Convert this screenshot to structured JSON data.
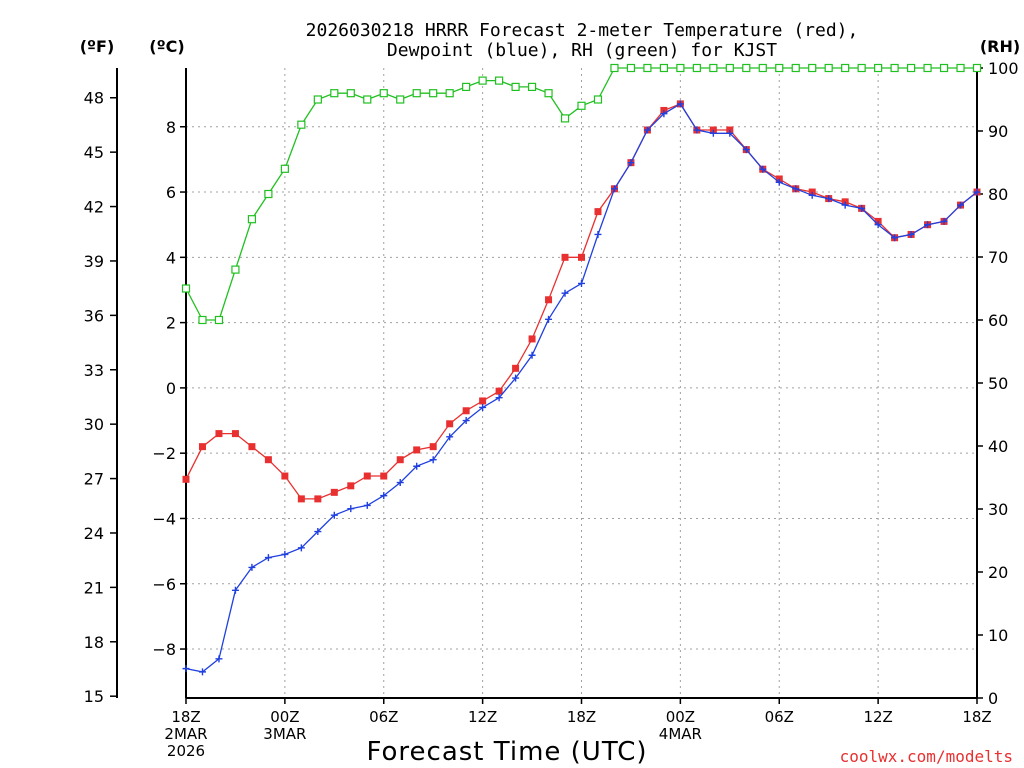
{
  "chart_data": {
    "type": "line",
    "title_line1": "2026030218 HRRR Forecast 2-meter Temperature (red),",
    "title_line2": "Dewpoint (blue), RH (green) for KJST",
    "xlabel": "Forecast Time (UTC)",
    "credit": "coolwx.com/modelts",
    "unit_labels": {
      "fahrenheit": "(ºF)",
      "celsius": "(ºC)",
      "rh": "(RH)"
    },
    "colors": {
      "temperature": "#e83030",
      "dewpoint": "#2040e0",
      "rh": "#20c020",
      "grid": "#a0a0a0"
    },
    "x_range": [
      0,
      48
    ],
    "x_ticks": [
      {
        "hour": 0,
        "lines": [
          "18Z",
          "2MAR",
          "2026"
        ]
      },
      {
        "hour": 6,
        "lines": [
          "00Z",
          "3MAR"
        ]
      },
      {
        "hour": 12,
        "lines": [
          "06Z"
        ]
      },
      {
        "hour": 18,
        "lines": [
          "12Z"
        ]
      },
      {
        "hour": 24,
        "lines": [
          "18Z"
        ]
      },
      {
        "hour": 30,
        "lines": [
          "00Z",
          "4MAR"
        ]
      },
      {
        "hour": 36,
        "lines": [
          "06Z"
        ]
      },
      {
        "hour": 42,
        "lines": [
          "12Z"
        ]
      },
      {
        "hour": 48,
        "lines": [
          "18Z"
        ]
      }
    ],
    "y_celsius": {
      "range": [
        -9.5,
        9.8
      ],
      "ticks": [
        -8,
        -6,
        -4,
        -2,
        0,
        2,
        4,
        6,
        8
      ]
    },
    "y_fahrenheit": {
      "ticks": [
        15,
        18,
        21,
        24,
        27,
        30,
        33,
        36,
        39,
        42,
        45,
        48
      ]
    },
    "y_rh": {
      "range": [
        0,
        100
      ],
      "ticks": [
        0,
        10,
        20,
        30,
        40,
        50,
        60,
        70,
        80,
        90,
        100
      ]
    },
    "hours": [
      0,
      1,
      2,
      3,
      4,
      5,
      6,
      7,
      8,
      9,
      10,
      11,
      12,
      13,
      14,
      15,
      16,
      17,
      18,
      19,
      20,
      21,
      22,
      23,
      24,
      25,
      26,
      27,
      28,
      29,
      30,
      31,
      32,
      33,
      34,
      35,
      36,
      37,
      38,
      39,
      40,
      41,
      42,
      43,
      44,
      45,
      46,
      47,
      48
    ],
    "series": [
      {
        "name": "Temperature",
        "unit": "C",
        "marker": "filled-square",
        "values": [
          -2.8,
          -1.8,
          -1.4,
          -1.4,
          -1.8,
          -2.2,
          -2.7,
          -3.4,
          -3.4,
          -3.2,
          -3.0,
          -2.7,
          -2.7,
          -2.2,
          -1.9,
          -1.8,
          -1.1,
          -0.7,
          -0.4,
          -0.1,
          0.6,
          1.5,
          2.7,
          4.0,
          4.0,
          5.4,
          6.1,
          6.9,
          7.9,
          8.5,
          8.7,
          7.9,
          7.9,
          7.9,
          7.3,
          6.7,
          6.4,
          6.1,
          6.0,
          5.8,
          5.7,
          5.5,
          5.1,
          4.6,
          4.7,
          5.0,
          5.1,
          5.6,
          6.0
        ]
      },
      {
        "name": "Dewpoint",
        "unit": "C",
        "marker": "plus",
        "values": [
          -8.6,
          -8.7,
          -8.3,
          -6.2,
          -5.5,
          -5.2,
          -5.1,
          -4.9,
          -4.4,
          -3.9,
          -3.7,
          -3.6,
          -3.3,
          -2.9,
          -2.4,
          -2.2,
          -1.5,
          -1.0,
          -0.6,
          -0.3,
          0.3,
          1.0,
          2.1,
          2.9,
          3.2,
          4.7,
          6.1,
          6.9,
          7.9,
          8.4,
          8.7,
          7.9,
          7.8,
          7.8,
          7.3,
          6.7,
          6.3,
          6.1,
          5.9,
          5.8,
          5.6,
          5.5,
          5.0,
          4.6,
          4.7,
          5.0,
          5.1,
          5.6,
          6.0
        ]
      },
      {
        "name": "RH",
        "unit": "%",
        "marker": "open-square",
        "values": [
          65,
          60,
          60,
          68,
          76,
          80,
          84,
          91,
          95,
          96,
          96,
          95,
          96,
          95,
          96,
          96,
          96,
          97,
          98,
          98,
          97,
          97,
          96,
          92,
          94,
          95,
          100,
          100,
          100,
          100,
          100,
          100,
          100,
          100,
          100,
          100,
          100,
          100,
          100,
          100,
          100,
          100,
          100,
          100,
          100,
          100,
          100,
          100,
          100
        ]
      }
    ]
  }
}
